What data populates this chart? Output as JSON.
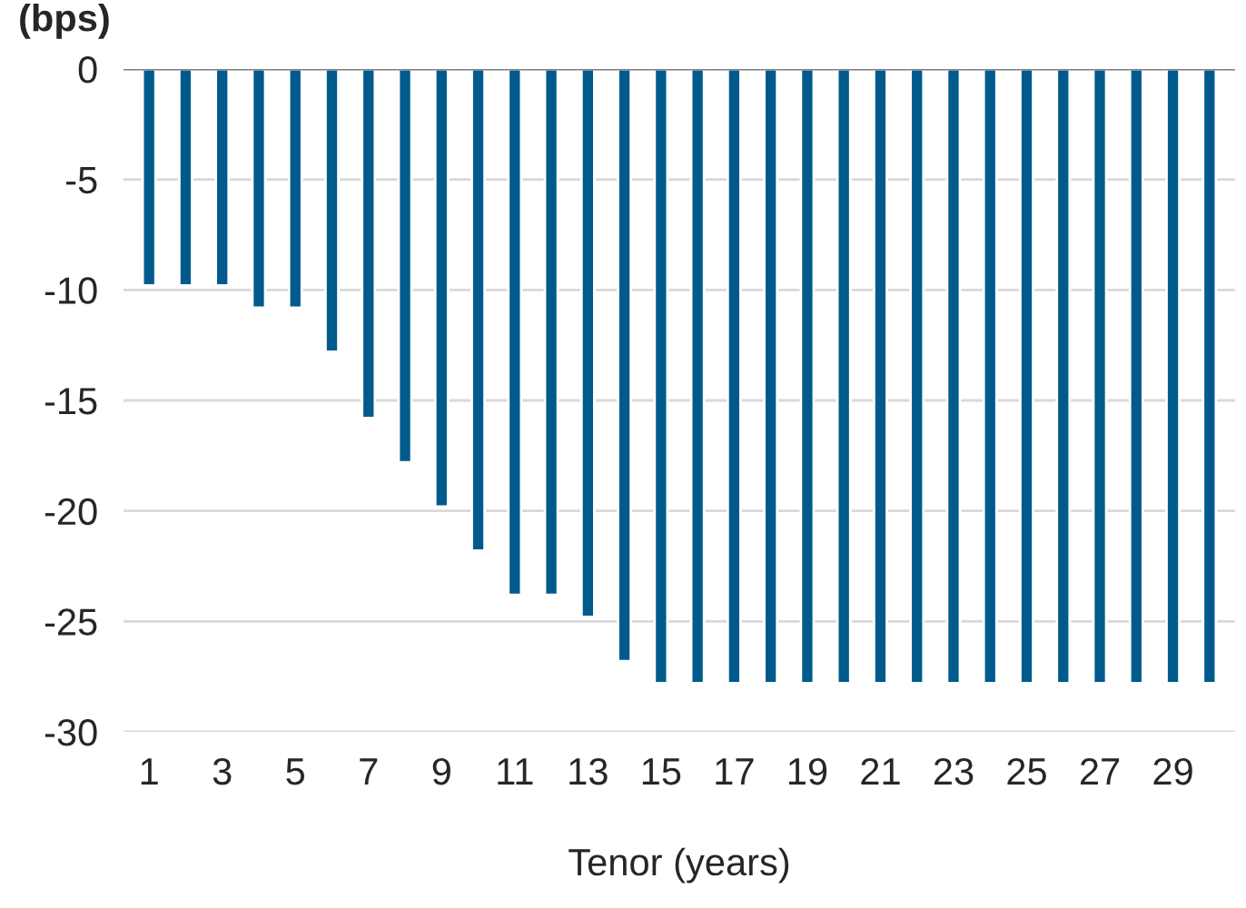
{
  "chart_data": {
    "type": "bar",
    "title": "(bps)",
    "xlabel": "Tenor (years)",
    "categories": [
      "1",
      null,
      "3",
      null,
      "5",
      null,
      "7",
      null,
      "9",
      null,
      "11",
      null,
      "13",
      null,
      "15",
      null,
      "17",
      null,
      "19",
      null,
      "21",
      null,
      "23",
      null,
      "25",
      null,
      "27",
      null,
      "29",
      null
    ],
    "values": [
      -9.8,
      -9.8,
      -9.8,
      -10.8,
      -10.8,
      -12.8,
      -15.8,
      -17.8,
      -19.8,
      -21.8,
      -23.8,
      -23.8,
      -24.8,
      -26.8,
      -27.8,
      -27.8,
      -27.8,
      -27.8,
      -27.8,
      -27.8,
      -27.8,
      -27.8,
      -27.8,
      -27.8,
      -27.8,
      -27.8,
      -27.8,
      -27.8,
      -27.8,
      -27.8
    ],
    "color": "#005a8c",
    "ylim": [
      -30,
      0
    ],
    "yticks": [
      -30,
      -25,
      -20,
      -15,
      -10,
      -5,
      0
    ],
    "grid": "y",
    "legend": false
  }
}
